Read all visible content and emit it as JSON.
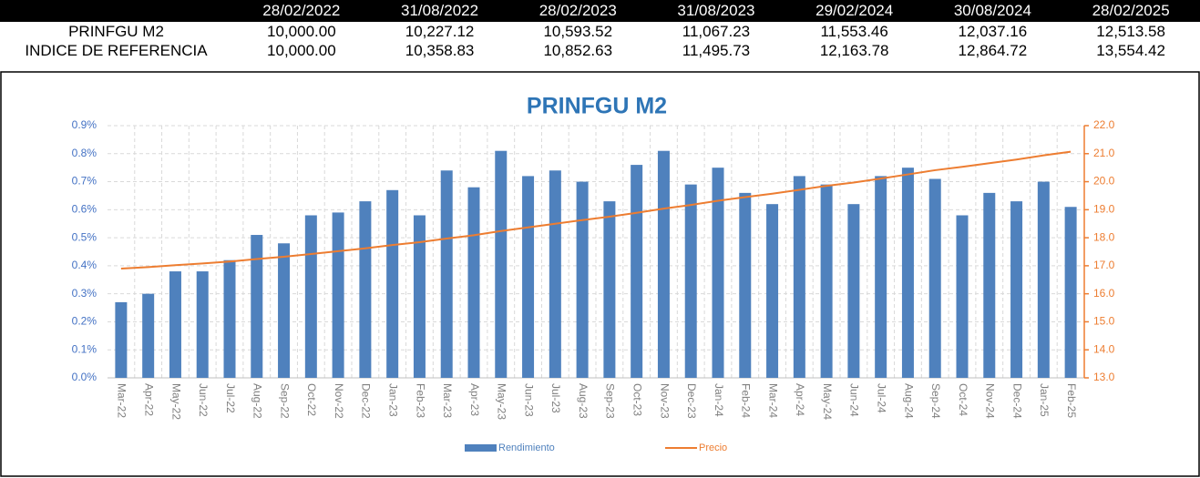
{
  "table": {
    "columns": [
      "28/02/2022",
      "31/08/2022",
      "28/02/2023",
      "31/08/2023",
      "29/02/2024",
      "30/08/2024",
      "28/02/2025"
    ],
    "rows": [
      {
        "label": "PRINFGU M2",
        "values": [
          "10,000.00",
          "10,227.12",
          "10,593.52",
          "11,067.23",
          "11,553.46",
          "12,037.16",
          "12,513.58"
        ]
      },
      {
        "label": "INDICE DE REFERENCIA",
        "values": [
          "10,000.00",
          "10,358.83",
          "10,852.63",
          "11,495.73",
          "12,163.78",
          "12,864.72",
          "13,554.42"
        ]
      }
    ]
  },
  "chart_data": {
    "type": "bar",
    "title": "PRINFGU M2",
    "categories": [
      "Mar-22",
      "Apr-22",
      "May-22",
      "Jun-22",
      "Jul-22",
      "Aug-22",
      "Sep-22",
      "Oct-22",
      "Nov-22",
      "Dec-22",
      "Jan-23",
      "Feb-23",
      "Mar-23",
      "Apr-23",
      "May-23",
      "Jun-23",
      "Jul-23",
      "Aug-23",
      "Sep-23",
      "Oct-23",
      "Nov-23",
      "Dec-23",
      "Jan-24",
      "Feb-24",
      "Mar-24",
      "Apr-24",
      "May-24",
      "Jun-24",
      "Jul-24",
      "Aug-24",
      "Sep-24",
      "Oct-24",
      "Nov-24",
      "Dec-24",
      "Jan-25",
      "Feb-25"
    ],
    "series": [
      {
        "name": "Rendimiento",
        "type": "bar",
        "color": "#4f81bd",
        "values": [
          0.27,
          0.3,
          0.38,
          0.38,
          0.42,
          0.51,
          0.48,
          0.58,
          0.59,
          0.63,
          0.67,
          0.58,
          0.74,
          0.68,
          0.81,
          0.72,
          0.74,
          0.7,
          0.63,
          0.76,
          0.81,
          0.69,
          0.75,
          0.66,
          0.62,
          0.72,
          0.69,
          0.62,
          0.72,
          0.75,
          0.71,
          0.58,
          0.66,
          0.63,
          0.7,
          0.61
        ]
      },
      {
        "name": "Precio",
        "type": "line",
        "axis": "y2",
        "color": "#ed7d31",
        "values": [
          16.9,
          16.95,
          17.02,
          17.08,
          17.15,
          17.24,
          17.32,
          17.42,
          17.52,
          17.62,
          17.74,
          17.84,
          17.97,
          18.09,
          18.24,
          18.37,
          18.5,
          18.63,
          18.75,
          18.89,
          19.04,
          19.17,
          19.32,
          19.45,
          19.57,
          19.71,
          19.85,
          19.97,
          20.11,
          20.26,
          20.41,
          20.53,
          20.66,
          20.79,
          20.94,
          21.07
        ]
      }
    ],
    "ylim": [
      0,
      0.9
    ],
    "yticks": [
      {
        "value": 0,
        "label": "0.0%"
      },
      {
        "value": 0.1,
        "label": "0.1%"
      },
      {
        "value": 0.2,
        "label": "0.2%"
      },
      {
        "value": 0.3,
        "label": "0.3%"
      },
      {
        "value": 0.4,
        "label": "0.4%"
      },
      {
        "value": 0.5,
        "label": "0.5%"
      },
      {
        "value": 0.6,
        "label": "0.6%"
      },
      {
        "value": 0.7,
        "label": "0.7%"
      },
      {
        "value": 0.8,
        "label": "0.8%"
      },
      {
        "value": 0.9,
        "label": "0.9%"
      }
    ],
    "y2lim": [
      13,
      22
    ],
    "y2ticks": [
      {
        "value": 13,
        "label": "13.0"
      },
      {
        "value": 14,
        "label": "14.0"
      },
      {
        "value": 15,
        "label": "15.0"
      },
      {
        "value": 16,
        "label": "16.0"
      },
      {
        "value": 17,
        "label": "17.0"
      },
      {
        "value": 18,
        "label": "18.0"
      },
      {
        "value": 19,
        "label": "19.0"
      },
      {
        "value": 20,
        "label": "20.0"
      },
      {
        "value": 21,
        "label": "21.0"
      },
      {
        "value": 22,
        "label": "22.0"
      }
    ],
    "grid": true
  }
}
